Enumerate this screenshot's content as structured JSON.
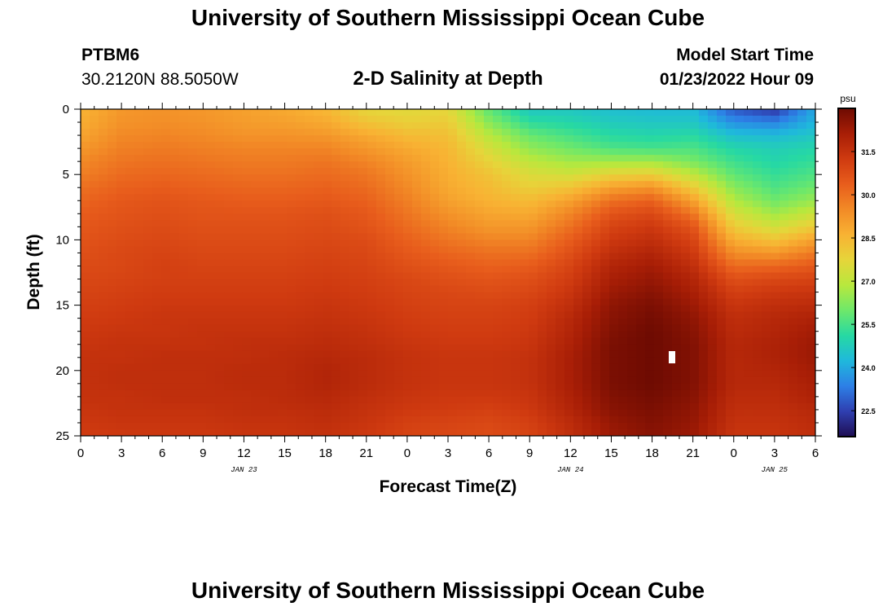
{
  "header": {
    "title": "University of Southern Mississippi Ocean Cube",
    "station_id": "PTBM6",
    "coordinates": "30.2120N  88.5050W",
    "subtitle": "2-D Salinity at Depth",
    "model_start_label": "Model Start Time",
    "model_start_value": "01/23/2022 Hour 09"
  },
  "footer": {
    "title": "University of Southern Mississippi Ocean Cube"
  },
  "chart_data": {
    "type": "heatmap",
    "title": "2-D Salinity at Depth",
    "xlabel": "Forecast Time(Z)",
    "ylabel": "Depth (ft)",
    "x_range_hours": [
      0,
      54
    ],
    "y_range_ft": [
      0,
      25
    ],
    "x_tick_labels": [
      "0",
      "3",
      "6",
      "9",
      "12",
      "15",
      "18",
      "21",
      "0",
      "3",
      "6",
      "9",
      "12",
      "15",
      "18",
      "21",
      "0",
      "3",
      "6"
    ],
    "y_tick_labels": [
      "0",
      "5",
      "10",
      "15",
      "20",
      "25"
    ],
    "date_labels": [
      {
        "text": "JAN 23",
        "hour": 12
      },
      {
        "text": "JAN 24",
        "hour": 36
      },
      {
        "text": "JAN 25",
        "hour": 51
      }
    ],
    "colorbar": {
      "unit": "psu",
      "min": 21.6,
      "max": 33.0,
      "tick_labels": [
        "22.5",
        "24.0",
        "25.5",
        "27.0",
        "28.5",
        "30.0",
        "31.5"
      ],
      "colors": [
        "#1e0d52",
        "#2f3fb0",
        "#2d7fe6",
        "#1fb8dc",
        "#26d9a3",
        "#6ee86a",
        "#b8e83d",
        "#e6d53a",
        "#f8b233",
        "#f28a26",
        "#e85d1c",
        "#cf3a10",
        "#a81e06",
        "#6e0b02"
      ]
    },
    "x_hours": [
      0,
      3,
      6,
      9,
      12,
      15,
      18,
      21,
      24,
      27,
      30,
      33,
      36,
      39,
      42,
      45,
      48,
      51,
      54
    ],
    "depth_ft": [
      0,
      1,
      2,
      3,
      4,
      5,
      6,
      7,
      8,
      9,
      10,
      11,
      12,
      13,
      14,
      15,
      16,
      17,
      18,
      19,
      20,
      21,
      22,
      23,
      24,
      25
    ],
    "salinity_psu": [
      [
        28.6,
        29.2,
        29.3,
        29.2,
        29.0,
        28.8,
        28.5,
        27.7,
        27.6,
        27.7,
        25.8,
        24.6,
        24.6,
        24.4,
        24.3,
        24.3,
        22.8,
        22.3,
        24.0
      ],
      [
        28.7,
        29.3,
        29.4,
        29.3,
        29.1,
        29.0,
        28.8,
        28.2,
        27.9,
        28.0,
        26.3,
        25.2,
        25.0,
        24.7,
        24.6,
        24.6,
        23.6,
        23.4,
        24.2
      ],
      [
        28.9,
        29.5,
        29.6,
        29.5,
        29.3,
        29.3,
        29.2,
        28.8,
        28.4,
        28.3,
        26.9,
        25.9,
        25.5,
        25.1,
        25.0,
        25.1,
        24.4,
        24.3,
        24.6
      ],
      [
        29.2,
        29.7,
        29.8,
        29.7,
        29.6,
        29.6,
        29.6,
        29.2,
        28.8,
        28.5,
        27.4,
        26.4,
        26.0,
        25.6,
        25.5,
        25.6,
        25.0,
        24.8,
        25.0
      ],
      [
        29.5,
        29.9,
        30.0,
        29.9,
        29.8,
        29.8,
        29.9,
        29.6,
        29.1,
        28.6,
        27.8,
        27.0,
        26.6,
        26.6,
        26.6,
        26.1,
        25.4,
        25.0,
        25.3
      ],
      [
        29.7,
        30.1,
        30.2,
        30.1,
        30.0,
        30.0,
        30.1,
        29.9,
        29.3,
        28.7,
        28.2,
        27.5,
        27.3,
        27.8,
        27.9,
        27.0,
        25.8,
        25.3,
        25.6
      ],
      [
        30.0,
        30.3,
        30.4,
        30.3,
        30.2,
        30.2,
        30.3,
        30.1,
        29.5,
        28.8,
        28.4,
        27.9,
        28.2,
        29.0,
        29.3,
        28.0,
        26.3,
        25.6,
        26.0
      ],
      [
        30.2,
        30.5,
        30.6,
        30.5,
        30.4,
        30.4,
        30.5,
        30.3,
        29.7,
        29.0,
        28.6,
        28.4,
        29.0,
        30.0,
        30.3,
        29.0,
        26.8,
        26.0,
        26.5
      ],
      [
        30.4,
        30.6,
        30.7,
        30.6,
        30.6,
        30.6,
        30.7,
        30.5,
        29.9,
        29.3,
        28.9,
        28.8,
        29.6,
        30.6,
        30.9,
        29.9,
        27.4,
        26.6,
        27.2
      ],
      [
        30.5,
        30.7,
        30.8,
        30.7,
        30.7,
        30.7,
        30.8,
        30.6,
        30.1,
        29.6,
        29.2,
        29.2,
        30.0,
        31.0,
        31.3,
        30.6,
        28.0,
        27.3,
        28.0
      ],
      [
        30.6,
        30.8,
        30.9,
        30.8,
        30.8,
        30.8,
        30.9,
        30.8,
        30.3,
        29.9,
        29.6,
        29.6,
        30.4,
        31.3,
        31.6,
        31.0,
        28.7,
        28.2,
        29.0
      ],
      [
        30.7,
        30.9,
        31.0,
        30.9,
        30.9,
        30.9,
        31.0,
        30.9,
        30.5,
        30.2,
        30.0,
        30.0,
        30.7,
        31.6,
        31.9,
        31.3,
        29.4,
        29.2,
        29.8
      ],
      [
        30.8,
        30.9,
        31.1,
        31.0,
        31.0,
        31.0,
        31.1,
        31.0,
        30.7,
        30.5,
        30.3,
        30.4,
        31.0,
        31.9,
        32.2,
        31.6,
        30.1,
        30.2,
        30.5
      ],
      [
        30.9,
        31.0,
        31.1,
        31.1,
        31.1,
        31.1,
        31.2,
        31.1,
        30.9,
        30.7,
        30.6,
        30.7,
        31.2,
        32.1,
        32.4,
        31.9,
        30.7,
        30.9,
        31.0
      ],
      [
        31.0,
        31.1,
        31.2,
        31.2,
        31.2,
        31.2,
        31.3,
        31.2,
        31.0,
        30.9,
        30.8,
        30.9,
        31.4,
        32.3,
        32.6,
        32.1,
        31.1,
        31.3,
        31.4
      ],
      [
        31.1,
        31.2,
        31.3,
        31.3,
        31.3,
        31.3,
        31.4,
        31.3,
        31.1,
        31.0,
        31.0,
        31.1,
        31.6,
        32.5,
        32.8,
        32.3,
        31.4,
        31.6,
        31.7
      ],
      [
        31.2,
        31.3,
        31.4,
        31.4,
        31.4,
        31.4,
        31.5,
        31.4,
        31.2,
        31.1,
        31.1,
        31.2,
        31.8,
        32.6,
        32.9,
        32.5,
        31.6,
        31.8,
        32.0
      ],
      [
        31.3,
        31.4,
        31.4,
        31.5,
        31.5,
        31.5,
        31.6,
        31.5,
        31.3,
        31.2,
        31.2,
        31.3,
        31.9,
        32.7,
        33.0,
        32.6,
        31.7,
        31.9,
        32.2
      ],
      [
        31.4,
        31.5,
        31.5,
        31.5,
        31.6,
        31.6,
        31.7,
        31.6,
        31.4,
        31.3,
        31.3,
        31.4,
        32.0,
        32.8,
        33.0,
        32.7,
        31.8,
        32.0,
        32.3
      ],
      [
        31.5,
        31.5,
        31.6,
        31.6,
        31.6,
        31.7,
        31.8,
        31.7,
        31.5,
        31.4,
        31.4,
        31.5,
        32.1,
        32.8,
        33.0,
        32.7,
        31.8,
        32.0,
        32.3
      ],
      [
        31.5,
        31.6,
        31.6,
        31.6,
        31.7,
        31.7,
        31.9,
        31.7,
        31.5,
        31.4,
        31.4,
        31.5,
        32.1,
        32.8,
        33.0,
        32.7,
        31.8,
        31.9,
        32.2
      ],
      [
        31.5,
        31.6,
        31.6,
        31.6,
        31.7,
        31.7,
        31.9,
        31.7,
        31.5,
        31.4,
        31.4,
        31.5,
        32.1,
        32.8,
        33.0,
        32.7,
        31.8,
        31.8,
        32.1
      ],
      [
        31.5,
        31.5,
        31.6,
        31.6,
        31.6,
        31.7,
        31.8,
        31.6,
        31.4,
        31.3,
        31.3,
        31.4,
        32.0,
        32.7,
        32.9,
        32.6,
        31.7,
        31.7,
        32.0
      ],
      [
        31.4,
        31.5,
        31.5,
        31.5,
        31.6,
        31.6,
        31.7,
        31.5,
        31.3,
        31.2,
        31.1,
        31.3,
        31.9,
        32.6,
        32.8,
        32.5,
        31.6,
        31.6,
        31.8
      ],
      [
        31.3,
        31.4,
        31.4,
        31.4,
        31.5,
        31.5,
        31.6,
        31.4,
        31.1,
        31.0,
        30.9,
        31.1,
        31.7,
        32.4,
        32.7,
        32.4,
        31.5,
        31.5,
        31.7
      ],
      [
        31.2,
        31.3,
        31.3,
        31.3,
        31.4,
        31.4,
        31.5,
        31.3,
        31.0,
        30.9,
        30.8,
        31.0,
        31.6,
        32.3,
        32.6,
        32.3,
        31.4,
        31.4,
        31.6
      ]
    ]
  }
}
